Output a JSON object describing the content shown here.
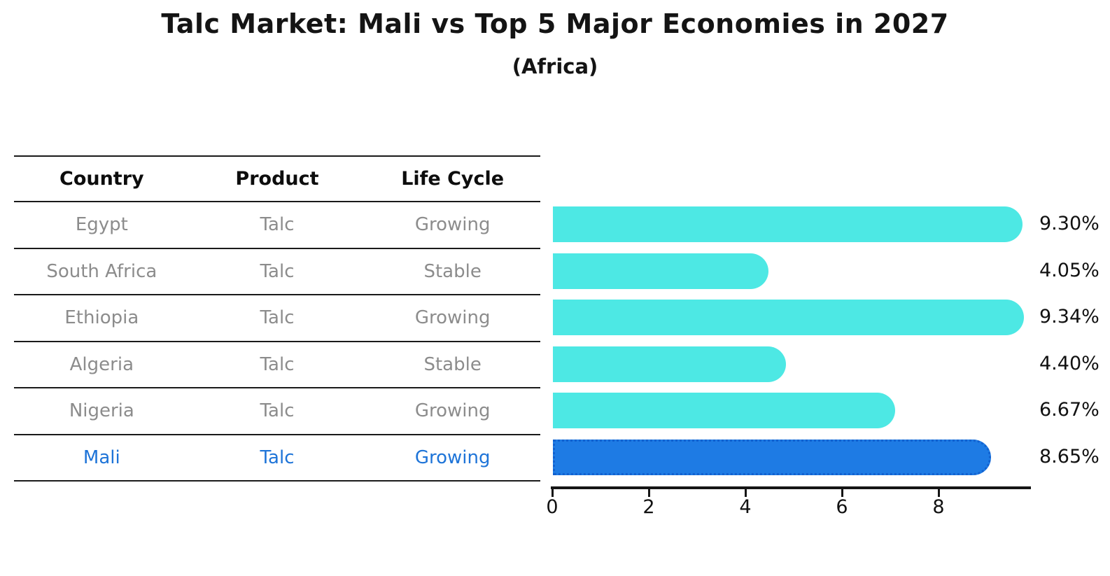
{
  "title": "Talc Market: Mali vs Top 5 Major Economies in 2027",
  "subtitle": "(Africa)",
  "table": {
    "headers": [
      "Country",
      "Product",
      "Life Cycle"
    ],
    "rows": [
      {
        "country": "Egypt",
        "product": "Talc",
        "life_cycle": "Growing",
        "highlighted": false
      },
      {
        "country": "South Africa",
        "product": "Talc",
        "life_cycle": "Stable",
        "highlighted": false
      },
      {
        "country": "Ethiopia",
        "product": "Talc",
        "life_cycle": "Growing",
        "highlighted": false
      },
      {
        "country": "Algeria",
        "product": "Talc",
        "life_cycle": "Stable",
        "highlighted": false
      },
      {
        "country": "Nigeria",
        "product": "Talc",
        "life_cycle": "Growing",
        "highlighted": false
      },
      {
        "country": "Mali",
        "product": "Talc",
        "life_cycle": "Growing",
        "highlighted": true
      }
    ]
  },
  "chart_data": {
    "type": "bar",
    "orientation": "horizontal",
    "title": "Talc Market: Mali vs Top 5 Major Economies in 2027 (Africa)",
    "categories": [
      "Egypt",
      "South Africa",
      "Ethiopia",
      "Algeria",
      "Nigeria",
      "Mali"
    ],
    "values": [
      9.3,
      4.05,
      9.34,
      4.4,
      6.67,
      8.65
    ],
    "value_labels": [
      "9.30%",
      "4.05%",
      "9.34%",
      "4.40%",
      "6.67%",
      "8.65%"
    ],
    "unit": "percent",
    "xticks": [
      0,
      2,
      4,
      6,
      8
    ],
    "xlim": [
      0,
      9.87
    ],
    "grid": false,
    "legend": "none",
    "bar_color": "#4de8e4",
    "highlight_bar_color": "#1e7be4",
    "highlight_border_color": "#1261cf",
    "highlight_index": 5,
    "highlight_text_color": "#1e74d8"
  }
}
